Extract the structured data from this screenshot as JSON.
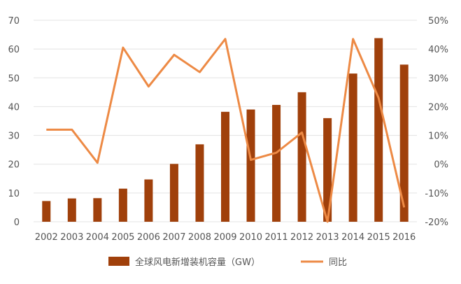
{
  "chart_data": {
    "type": "bar+line",
    "categories": [
      "2002",
      "2003",
      "2004",
      "2005",
      "2006",
      "2007",
      "2008",
      "2009",
      "2010",
      "2011",
      "2012",
      "2013",
      "2014",
      "2015",
      "2016"
    ],
    "series": [
      {
        "name": "全球风电新增装机容量（GW）",
        "type": "bar",
        "axis": "left",
        "values": [
          7.2,
          8.1,
          8.2,
          11.5,
          14.7,
          20.1,
          26.9,
          38.2,
          39.0,
          40.6,
          45.0,
          36.0,
          51.5,
          63.8,
          54.6
        ]
      },
      {
        "name": "同比",
        "type": "line",
        "axis": "right",
        "values": [
          12,
          12,
          0.5,
          40.5,
          27,
          38,
          32,
          43.5,
          1.5,
          4,
          11,
          -20,
          43.5,
          23,
          -15
        ]
      }
    ],
    "y_left": {
      "range": [
        0,
        70
      ],
      "ticks": [
        "0",
        "10",
        "20",
        "30",
        "40",
        "50",
        "60",
        "70"
      ]
    },
    "y_right": {
      "range": [
        -20,
        50
      ],
      "ticks": [
        "-20%",
        "-10%",
        "0%",
        "10%",
        "20%",
        "30%",
        "40%",
        "50%"
      ]
    },
    "grid": "horizontal",
    "legend_position": "bottom",
    "colors": {
      "bar": "#A0400B",
      "line": "#ED8A45",
      "grid": "#e3e3e3",
      "text": "#555555"
    }
  }
}
